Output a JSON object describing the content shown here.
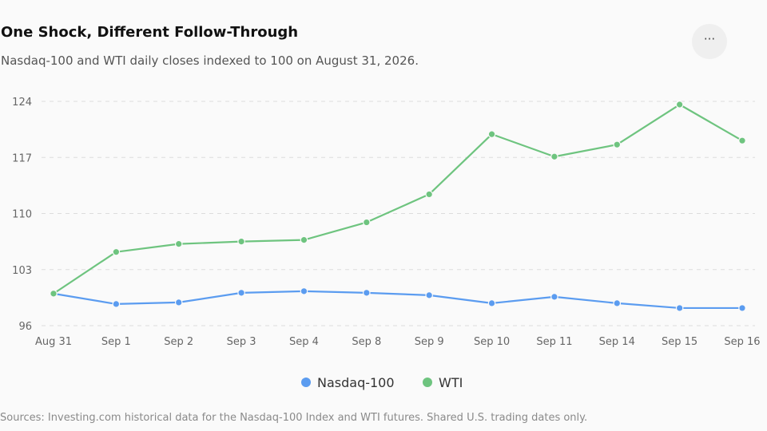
{
  "header": {
    "title": "One Shock, Different Follow-Through",
    "subtitle": "Nasdaq-100 and WTI daily closes indexed to 100 on August 31, 2026.",
    "menu_icon": "more-horizontal-icon",
    "menu_glyph": "···"
  },
  "footer": {
    "source": "Sources: Investing.com historical data for the Nasdaq-100 Index and WTI futures. Shared U.S. trading dates only."
  },
  "chart_data": {
    "type": "line",
    "title": "One Shock, Different Follow-Through",
    "subtitle": "Nasdaq-100 and WTI daily closes indexed to 100 on August 31, 2026.",
    "categories": [
      "Aug 31",
      "Sep 1",
      "Sep 2",
      "Sep 3",
      "Sep 4",
      "Sep 8",
      "Sep 9",
      "Sep 10",
      "Sep 11",
      "Sep 14",
      "Sep 15",
      "Sep 16"
    ],
    "yticks": [
      96,
      103,
      110,
      117,
      124
    ],
    "ylim": [
      96,
      124
    ],
    "grid": true,
    "legend_position": "bottom-center",
    "series": [
      {
        "name": "Nasdaq-100",
        "color": "#5b9cf0",
        "values": [
          100.0,
          98.7,
          98.9,
          100.1,
          100.3,
          100.1,
          99.8,
          98.8,
          99.6,
          98.8,
          98.2,
          98.2
        ]
      },
      {
        "name": "WTI",
        "color": "#6ec47f",
        "values": [
          100.0,
          105.2,
          106.2,
          106.5,
          106.7,
          108.9,
          112.4,
          119.9,
          117.1,
          118.6,
          123.6,
          119.1
        ]
      }
    ]
  }
}
